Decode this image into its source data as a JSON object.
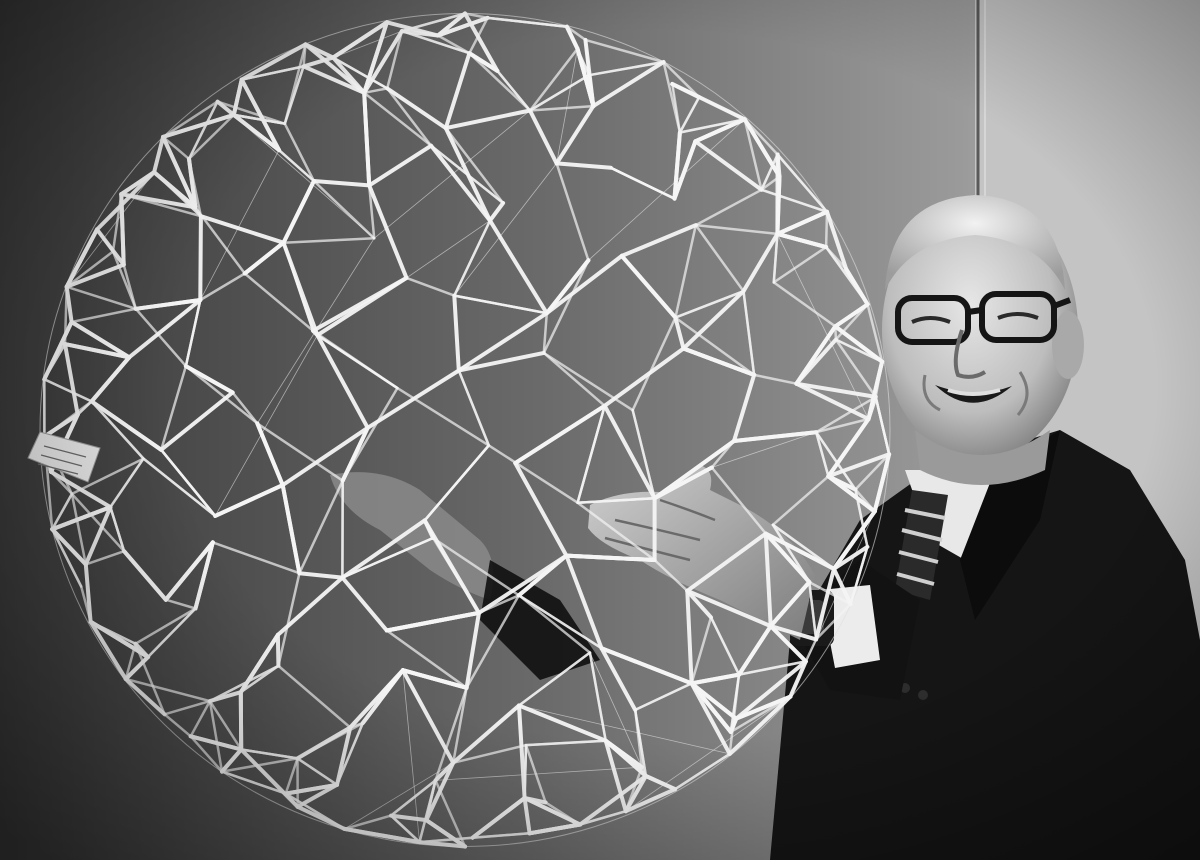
{
  "photo": {
    "mode": "black-and-white",
    "subject": "elderly-man-with-geodesic-tensegrity-sphere",
    "tag_text": ""
  },
  "colors": {
    "wall_dark": "#3d3d3d",
    "wall_mid": "#8a8a8a",
    "wall_light": "#bdbdbd",
    "strut": "#f4f4f4",
    "suit": "#141414",
    "skin_light": "#d9d9d9",
    "skin_dark": "#7a7a7a"
  }
}
